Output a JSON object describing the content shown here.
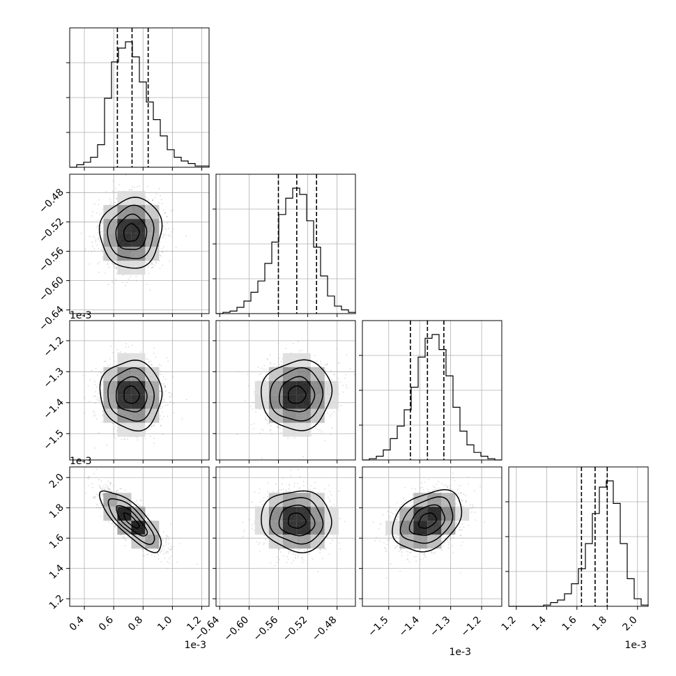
{
  "chart_data": {
    "type": "corner",
    "n_params": 4,
    "offset_label": "1e-3",
    "grid": true,
    "colors": {
      "hist": "#000000",
      "scatter": "#999999",
      "grid": "#b0b0b0",
      "density": "#000000"
    },
    "params": [
      {
        "range": [
          0.3,
          1.25
        ],
        "ticks": [
          0.4,
          0.6,
          0.8,
          1.0,
          1.2
        ],
        "tick_labels": [
          "0.4",
          "0.6",
          "0.8",
          "1.0",
          "1.2"
        ],
        "quantiles": [
          0.625,
          0.725,
          0.835
        ],
        "hist": {
          "edges_start": 0.3,
          "bin_width": 0.0475,
          "counts": [
            0,
            2,
            4,
            8,
            18,
            55,
            84,
            95,
            100,
            88,
            68,
            52,
            38,
            25,
            14,
            8,
            5,
            3,
            1,
            1
          ]
        }
      },
      {
        "range": [
          -0.645,
          -0.455
        ],
        "ticks": [
          -0.64,
          -0.6,
          -0.56,
          -0.52,
          -0.48
        ],
        "tick_labels": [
          "−0.64",
          "−0.60",
          "−0.56",
          "−0.52",
          "−0.48"
        ],
        "quantiles": [
          -0.56,
          -0.535,
          -0.508
        ],
        "hist": {
          "edges_start": -0.645,
          "bin_width": 0.0095,
          "counts": [
            0,
            1,
            2,
            5,
            10,
            17,
            26,
            40,
            57,
            79,
            92,
            100,
            95,
            74,
            53,
            30,
            14,
            6,
            3,
            1
          ]
        }
      },
      {
        "range": [
          -1.585,
          -1.135
        ],
        "ticks": [
          -1.5,
          -1.4,
          -1.3,
          -1.2
        ],
        "tick_labels": [
          "−1.5",
          "−1.4",
          "−1.3",
          "−1.2"
        ],
        "quantiles": [
          -1.43,
          -1.375,
          -1.322
        ],
        "hist": {
          "edges_start": -1.585,
          "bin_width": 0.0225,
          "counts": [
            0,
            1,
            3,
            8,
            17,
            27,
            40,
            58,
            82,
            97,
            100,
            88,
            67,
            42,
            23,
            12,
            6,
            3,
            1,
            0
          ]
        }
      },
      {
        "range": [
          1.15,
          2.07
        ],
        "ticks": [
          1.2,
          1.4,
          1.6,
          1.8,
          2.0
        ],
        "tick_labels": [
          "1.2",
          "1.4",
          "1.6",
          "1.8",
          "2.0"
        ],
        "quantiles": [
          1.63,
          1.72,
          1.8
        ],
        "hist": {
          "edges_start": 1.15,
          "bin_width": 0.046,
          "counts": [
            0,
            0,
            0,
            0,
            0,
            1,
            3,
            5,
            10,
            18,
            30,
            50,
            74,
            95,
            100,
            82,
            50,
            22,
            6,
            1
          ]
        }
      }
    ],
    "pairs": [
      {
        "row": 1,
        "col": 0,
        "center": [
          0.72,
          -0.535
        ],
        "std": [
          0.105,
          0.024
        ],
        "rho": 0.05
      },
      {
        "row": 2,
        "col": 0,
        "center": [
          0.72,
          -1.375
        ],
        "std": [
          0.105,
          0.056
        ],
        "rho": -0.05
      },
      {
        "row": 2,
        "col": 1,
        "center": [
          -0.535,
          -1.375
        ],
        "std": [
          0.024,
          0.056
        ],
        "rho": 0.05
      },
      {
        "row": 3,
        "col": 0,
        "center": [
          0.72,
          1.715
        ],
        "std": [
          0.105,
          0.1
        ],
        "rho": -0.8
      },
      {
        "row": 3,
        "col": 1,
        "center": [
          -0.535,
          1.715
        ],
        "std": [
          0.024,
          0.1
        ],
        "rho": -0.05
      },
      {
        "row": 3,
        "col": 2,
        "center": [
          -1.375,
          1.715
        ],
        "std": [
          0.056,
          0.1
        ],
        "rho": 0.32
      }
    ]
  }
}
